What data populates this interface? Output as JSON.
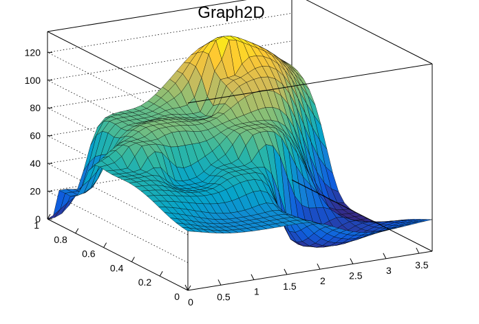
{
  "chart_data": {
    "type": "surface",
    "title": "Graph2D",
    "xlabel": "",
    "ylabel": "",
    "zlabel": "",
    "xlim": [
      0,
      3.7
    ],
    "ylim": [
      0,
      1
    ],
    "zlim": [
      0,
      135
    ],
    "x_ticks": [
      "0",
      "0.5",
      "1",
      "1.5",
      "2",
      "2.5",
      "3",
      "3.5"
    ],
    "y_ticks": [
      "0",
      "0.2",
      "0.4",
      "0.6",
      "0.8",
      "1"
    ],
    "z_ticks": [
      "0",
      "20",
      "40",
      "60",
      "80",
      "100",
      "120"
    ],
    "grid": true,
    "colormap": [
      "#352a87",
      "#0f5cdd",
      "#1481d6",
      "#06a4ca",
      "#2eb7a4",
      "#87bf77",
      "#d1bb59",
      "#fec832",
      "#f9fb0e"
    ],
    "surface_points": [
      {
        "x": 0.0,
        "y": 1.0,
        "z": 0
      },
      {
        "x": 0.05,
        "y": 0.9,
        "z": 25
      },
      {
        "x": 0.3,
        "y": 0.55,
        "z": 55
      },
      {
        "x": 0.6,
        "y": 0.6,
        "z": 70
      },
      {
        "x": 1.0,
        "y": 0.9,
        "z": 70
      },
      {
        "x": 1.1,
        "y": 0.7,
        "z": 75
      },
      {
        "x": 1.0,
        "y": 0.45,
        "z": 45
      },
      {
        "x": 1.6,
        "y": 0.4,
        "z": 55
      },
      {
        "x": 1.9,
        "y": 0.8,
        "z": 70
      },
      {
        "x": 2.1,
        "y": 0.5,
        "z": 75
      },
      {
        "x": 2.3,
        "y": 0.8,
        "z": 95
      },
      {
        "x": 2.4,
        "y": 0.85,
        "z": 120
      },
      {
        "x": 1.2,
        "y": 0.1,
        "z": 35
      },
      {
        "x": 2.5,
        "y": 0.3,
        "z": 0
      },
      {
        "x": 3.7,
        "y": 0.5,
        "z": 0
      }
    ]
  }
}
